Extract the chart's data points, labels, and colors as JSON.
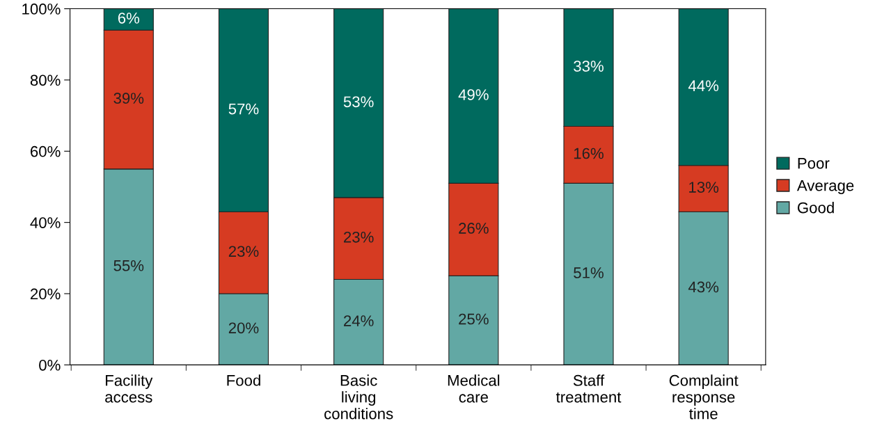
{
  "chart_data": {
    "type": "bar",
    "stacked": true,
    "categories": [
      "Facility\naccess",
      "Food",
      "Basic\nliving\nconditions",
      "Medical\ncare",
      "Staff\ntreatment",
      "Complaint\nresponse\ntime"
    ],
    "series": [
      {
        "name": "Good",
        "color": "#62a8a4",
        "values": [
          55,
          20,
          24,
          25,
          51,
          43
        ],
        "value_labels": [
          "55%",
          "20%",
          "24%",
          "25%",
          "51%",
          "43%"
        ]
      },
      {
        "name": "Average",
        "color": "#d63b22",
        "values": [
          39,
          23,
          23,
          26,
          16,
          13
        ],
        "value_labels": [
          "39%",
          "23%",
          "23%",
          "26%",
          "16%",
          "13%"
        ]
      },
      {
        "name": "Poor",
        "color": "#006a5e",
        "values": [
          6,
          57,
          53,
          49,
          33,
          44
        ],
        "value_labels": [
          "6%",
          "57%",
          "53%",
          "49%",
          "33%",
          "44%"
        ]
      }
    ],
    "ylim": [
      0,
      100
    ],
    "yticks": [
      {
        "value": 0,
        "label": "0%"
      },
      {
        "value": 20,
        "label": "20%"
      },
      {
        "value": 40,
        "label": "40%"
      },
      {
        "value": 60,
        "label": "60%"
      },
      {
        "value": 80,
        "label": "80%"
      },
      {
        "value": 100,
        "label": "100%"
      }
    ],
    "grid": false,
    "legend": "right"
  }
}
